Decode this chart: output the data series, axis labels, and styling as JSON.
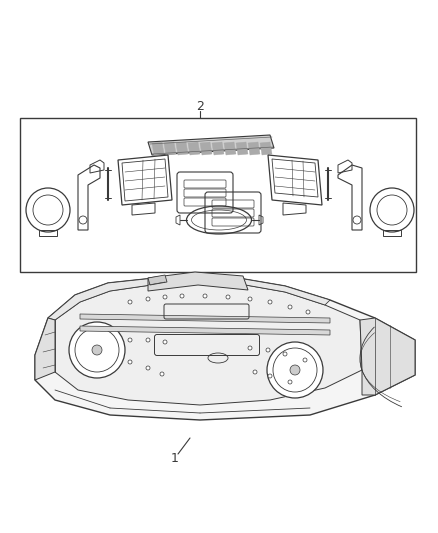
{
  "bg_color": "#ffffff",
  "lc": "#3a3a3a",
  "lc2": "#555555",
  "fig_w": 4.38,
  "fig_h": 5.33,
  "dpi": 100
}
